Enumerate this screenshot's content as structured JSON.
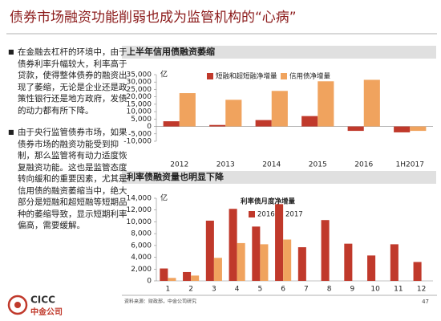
{
  "slide_title": "债券市场融资功能削弱也成为监管机构的“心病”",
  "bullets": [
    "在金融去杠杆的环境中，由于债券利率升幅较大，利率高于贷款，使得整体债券的融资出现了萎缩，无论是企业还是政策性银行还是地方政府，发债的动力都有所下降。",
    "由于央行监管债券市场，如果债券市场的融资功能受到抑制，那么监管将有动力适度恢复融资功能。这也是监管态度转向缓和的重要因素，尤其是信用债的融资萎缩当中，绝大部分是短融和超短融等短期品种的萎缩导致，显示短期利率偏高，需要缓解。"
  ],
  "footer": {
    "source": "资料来源：财政部，中金公司研究",
    "page": "47",
    "logo_en": "CICC",
    "logo_cn": "中金公司"
  },
  "chart_data": [
    {
      "type": "bar",
      "header": "上半年信用债融资萎缩",
      "unit_label": "亿",
      "categories": [
        "2012",
        "2013",
        "2014",
        "2015",
        "2016",
        "1H2017"
      ],
      "series": [
        {
          "name": "短融和超短融净增量",
          "color": "#c0392b",
          "values": [
            3500,
            1000,
            4300,
            7000,
            -3000,
            -4000
          ]
        },
        {
          "name": "信用债净增量",
          "color": "#f0a35e",
          "values": [
            22500,
            18000,
            24000,
            30500,
            31500,
            -3000
          ]
        }
      ],
      "ylim": [
        -10000,
        35000
      ],
      "yticks": [
        {
          "value": -10000,
          "label": "-10,000"
        },
        {
          "value": -5000,
          "label": "-5,000"
        },
        0,
        {
          "value": 5000,
          "label": "5,000"
        },
        {
          "value": 10000,
          "label": "10,000"
        },
        {
          "value": 15000,
          "label": "15,000"
        },
        {
          "value": 20000,
          "label": "20,000"
        },
        {
          "value": 25000,
          "label": "25,000"
        },
        {
          "value": 30000,
          "label": "30,000"
        },
        {
          "value": 35000,
          "label": "35,000"
        }
      ]
    },
    {
      "type": "bar",
      "header": "利率债融资量也明显下降",
      "title": "利率债月度净增量",
      "unit_label": "亿",
      "categories": [
        "1",
        "2",
        "3",
        "4",
        "5",
        "6",
        "7",
        "8",
        "9",
        "10",
        "11",
        "12"
      ],
      "series": [
        {
          "name": "2016",
          "color": "#c0392b",
          "values": [
            2100,
            1500,
            10200,
            12200,
            9200,
            13000,
            5700,
            10300,
            6300,
            4300,
            6200,
            3200
          ]
        },
        {
          "name": "2017",
          "color": "#f0a35e",
          "values": [
            500,
            900,
            3900,
            6400,
            6200,
            7000,
            null,
            null,
            null,
            null,
            null,
            null
          ]
        }
      ],
      "ylim": [
        0,
        14000
      ],
      "yticks": [
        0,
        {
          "value": 2000,
          "label": "2,000"
        },
        {
          "value": 4000,
          "label": "4,000"
        },
        {
          "value": 6000,
          "label": "6,000"
        },
        {
          "value": 8000,
          "label": "8,000"
        },
        {
          "value": 10000,
          "label": "10,000"
        },
        {
          "value": 12000,
          "label": "12,000"
        },
        {
          "value": 14000,
          "label": "14,000"
        }
      ]
    }
  ]
}
